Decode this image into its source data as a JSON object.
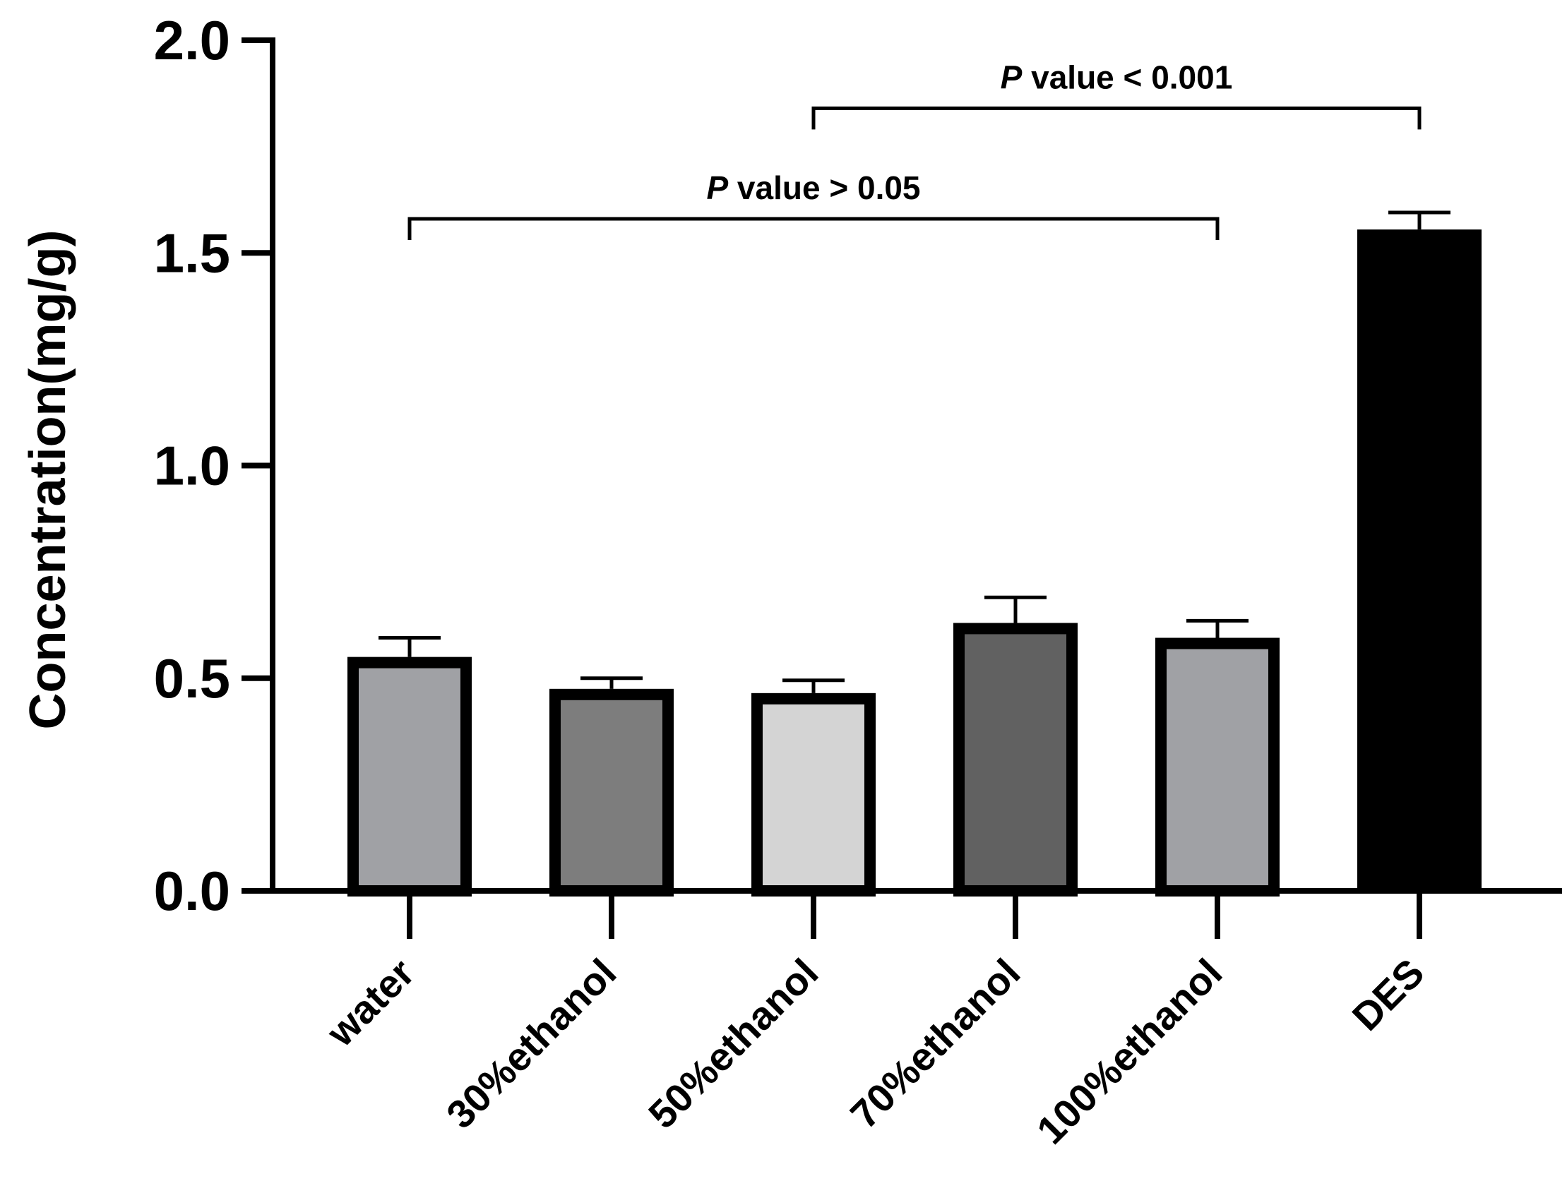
{
  "chart_data": {
    "type": "bar",
    "categories": [
      "water",
      "30%ethanol",
      "50%ethanol",
      "70%ethanol",
      "100%ethanol",
      "DES"
    ],
    "values": [
      0.55,
      0.475,
      0.465,
      0.63,
      0.595,
      1.555
    ],
    "errors": [
      0.045,
      0.025,
      0.03,
      0.06,
      0.04,
      0.04
    ],
    "colors": [
      "#a0a1a5",
      "#7d7d7d",
      "#d4d4d4",
      "#616161",
      "#a0a1a5",
      "#000000"
    ],
    "ylabel": "Concentration(mg/g)",
    "ylim": [
      0,
      2.0
    ],
    "yticks": [
      {
        "value": 0.0,
        "label": "0.0"
      },
      {
        "value": 0.5,
        "label": "0.5"
      },
      {
        "value": 1.0,
        "label": "1.0"
      },
      {
        "value": 1.5,
        "label": "1.5"
      },
      {
        "value": 2.0,
        "label": "2.0"
      }
    ],
    "annotations": [
      {
        "from": "water",
        "to": "100%ethanol",
        "y": 1.58,
        "p_symbol": "P",
        "text": " value > 0.05"
      },
      {
        "from": "50%ethanol",
        "to": "DES",
        "y": 1.84,
        "p_symbol": "P",
        "text": " value < 0.001"
      }
    ]
  }
}
